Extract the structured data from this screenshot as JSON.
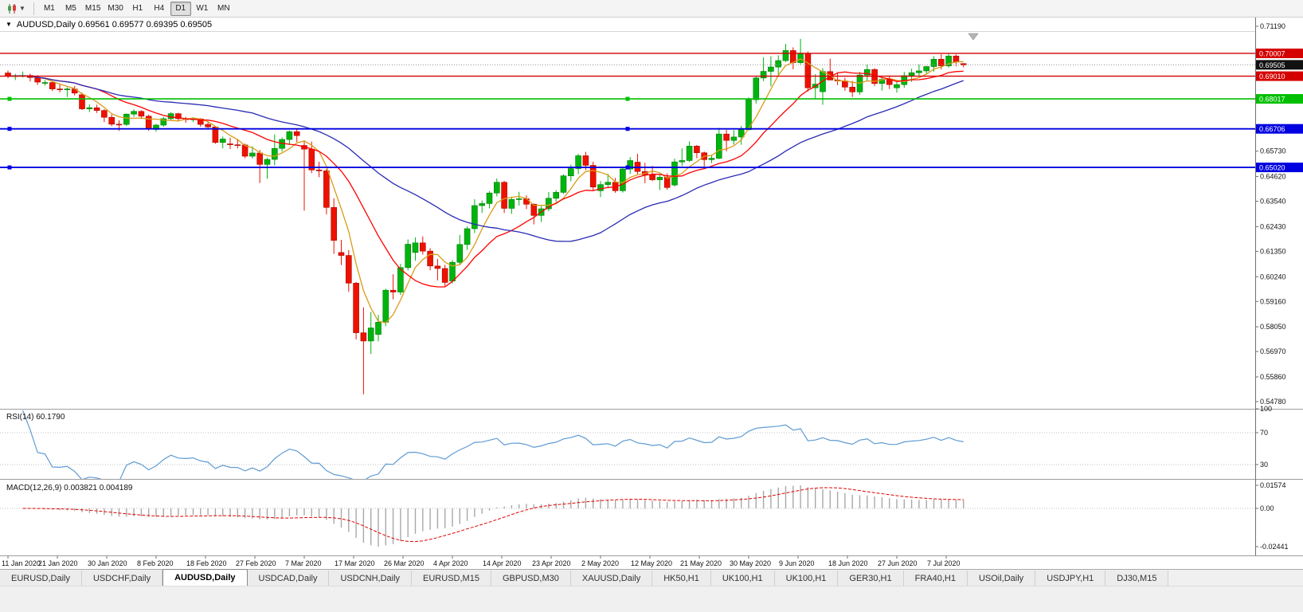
{
  "toolbar": {
    "timeframes": [
      "M1",
      "M5",
      "M15",
      "M30",
      "H1",
      "H4",
      "D1",
      "W1",
      "MN"
    ],
    "active_timeframe": "D1"
  },
  "chart_window": {
    "title_marker": "▼",
    "title": "AUDUSD,Daily 0.69561 0.69577 0.69395 0.69505"
  },
  "chart_data": {
    "type": "candlestick",
    "symbol": "AUDUSD",
    "timeframe": "Daily",
    "ohlc_display": {
      "open": "0.69561",
      "high": "0.69577",
      "low": "0.69395",
      "close": "0.69505"
    },
    "y_range": [
      0.5478,
      0.7119
    ],
    "style": {
      "up_color": "#00b40e",
      "up_border": "#007c09",
      "down_color": "#ee1100",
      "down_border": "#a80b00",
      "background": "#ffffff"
    },
    "x_labels": [
      "11 Jan 2020",
      "21 Jan 2020",
      "30 Jan 2020",
      "8 Feb 2020",
      "18 Feb 2020",
      "27 Feb 2020",
      "7 Mar 2020",
      "17 Mar 2020",
      "26 Mar 2020",
      "4 Apr 2020",
      "14 Apr 2020",
      "23 Apr 2020",
      "2 May 2020",
      "12 May 2020",
      "21 May 2020",
      "30 May 2020",
      "9 Jun 2020",
      "18 Jun 2020",
      "27 Jun 2020",
      "7 Jul 2020"
    ],
    "y_ticks": [
      {
        "label": "0.71190",
        "price": 0.7119
      },
      {
        "label": "0.65730",
        "price": 0.6573
      },
      {
        "label": "0.64620",
        "price": 0.6462
      },
      {
        "label": "0.63540",
        "price": 0.6354
      },
      {
        "label": "0.62430",
        "price": 0.6243
      },
      {
        "label": "0.61350",
        "price": 0.6135
      },
      {
        "label": "0.60240",
        "price": 0.6024
      },
      {
        "label": "0.59160",
        "price": 0.5916
      },
      {
        "label": "0.58050",
        "price": 0.5805
      },
      {
        "label": "0.56970",
        "price": 0.5697
      },
      {
        "label": "0.55860",
        "price": 0.5586
      },
      {
        "label": "0.54780",
        "price": 0.5478
      }
    ],
    "levels": [
      {
        "label": "0.70007",
        "price": 0.70007,
        "color": "#d40000",
        "width": 1.4,
        "kind": "resistance",
        "handles": false
      },
      {
        "label": "0.69505",
        "price": 0.69505,
        "color": "#111111",
        "kind": "current-price"
      },
      {
        "label": "0.69010",
        "price": 0.6901,
        "color": "#d40000",
        "width": 1.4,
        "kind": "resistance",
        "handles": false
      },
      {
        "label": "0.68017",
        "price": 0.68017,
        "color": "#00bf00",
        "width": 1.6,
        "kind": "support",
        "handles": true
      },
      {
        "label": "0.66706",
        "price": 0.66706,
        "color": "#0000e0",
        "width": 1.8,
        "kind": "support",
        "handles": true
      },
      {
        "label": "0.65020",
        "price": 0.6502,
        "color": "#0000e0",
        "width": 1.8,
        "kind": "support",
        "handles": true
      }
    ],
    "moving_averages": [
      {
        "name": "fast-ma",
        "period": 5,
        "color": "#d89c18"
      },
      {
        "name": "medium-ma",
        "period": 13,
        "color": "#ff0000"
      },
      {
        "name": "slow-ma",
        "period": 34,
        "color": "#2a2ab4"
      }
    ],
    "candles": [
      [
        0.6915,
        0.6925,
        0.6892,
        0.6901
      ],
      [
        0.6901,
        0.6911,
        0.6884,
        0.6903
      ],
      [
        0.6903,
        0.6921,
        0.6895,
        0.6904
      ],
      [
        0.6904,
        0.6912,
        0.6878,
        0.6895
      ],
      [
        0.6895,
        0.6905,
        0.6863,
        0.6875
      ],
      [
        0.6872,
        0.6884,
        0.686,
        0.6873
      ],
      [
        0.6873,
        0.688,
        0.6836,
        0.6845
      ],
      [
        0.6845,
        0.6866,
        0.683,
        0.6844
      ],
      [
        0.6844,
        0.6852,
        0.681,
        0.6845
      ],
      [
        0.6845,
        0.6858,
        0.6817,
        0.6827
      ],
      [
        0.682,
        0.6829,
        0.6753,
        0.6758
      ],
      [
        0.6758,
        0.6777,
        0.6744,
        0.6763
      ],
      [
        0.6763,
        0.6776,
        0.674,
        0.6751
      ],
      [
        0.6751,
        0.6757,
        0.67,
        0.6721
      ],
      [
        0.6721,
        0.6733,
        0.6682,
        0.6691
      ],
      [
        0.6691,
        0.6708,
        0.6662,
        0.669
      ],
      [
        0.669,
        0.6738,
        0.6683,
        0.6735
      ],
      [
        0.6735,
        0.6756,
        0.6723,
        0.6747
      ],
      [
        0.6747,
        0.6752,
        0.6714,
        0.6726
      ],
      [
        0.6726,
        0.6733,
        0.6662,
        0.6671
      ],
      [
        0.6668,
        0.6692,
        0.6658,
        0.6687
      ],
      [
        0.6687,
        0.6723,
        0.668,
        0.6715
      ],
      [
        0.6715,
        0.6743,
        0.671,
        0.6737
      ],
      [
        0.6737,
        0.6741,
        0.6704,
        0.6715
      ],
      [
        0.6715,
        0.6723,
        0.6697,
        0.6711
      ],
      [
        0.6711,
        0.6722,
        0.67,
        0.6714
      ],
      [
        0.6714,
        0.6718,
        0.668,
        0.669
      ],
      [
        0.669,
        0.67,
        0.6667,
        0.6679
      ],
      [
        0.6679,
        0.6683,
        0.6605,
        0.6611
      ],
      [
        0.6611,
        0.6637,
        0.6585,
        0.6626
      ],
      [
        0.6605,
        0.6632,
        0.6582,
        0.6601
      ],
      [
        0.6601,
        0.6627,
        0.6585,
        0.66
      ],
      [
        0.66,
        0.6606,
        0.6542,
        0.6551
      ],
      [
        0.6551,
        0.6594,
        0.6541,
        0.6565
      ],
      [
        0.6565,
        0.6578,
        0.6434,
        0.6515
      ],
      [
        0.6515,
        0.6545,
        0.6452,
        0.6537
      ],
      [
        0.6537,
        0.6646,
        0.6511,
        0.6585
      ],
      [
        0.6585,
        0.6633,
        0.6571,
        0.6624
      ],
      [
        0.6624,
        0.6664,
        0.66,
        0.6658
      ],
      [
        0.6658,
        0.6671,
        0.6613,
        0.6641
      ],
      [
        0.6598,
        0.6617,
        0.6313,
        0.6582
      ],
      [
        0.6582,
        0.6615,
        0.6477,
        0.6491
      ],
      [
        0.6491,
        0.6527,
        0.6459,
        0.6487
      ],
      [
        0.6487,
        0.6495,
        0.6297,
        0.6327
      ],
      [
        0.6327,
        0.6367,
        0.6124,
        0.6183
      ],
      [
        0.613,
        0.6185,
        0.6075,
        0.6117
      ],
      [
        0.6117,
        0.6141,
        0.5958,
        0.5996
      ],
      [
        0.5996,
        0.6001,
        0.575,
        0.5779
      ],
      [
        0.5779,
        0.589,
        0.551,
        0.5743
      ],
      [
        0.5743,
        0.587,
        0.5686,
        0.58
      ],
      [
        0.5772,
        0.5857,
        0.5741,
        0.5825
      ],
      [
        0.5825,
        0.5972,
        0.5808,
        0.5965
      ],
      [
        0.5965,
        0.6035,
        0.5925,
        0.5957
      ],
      [
        0.5957,
        0.608,
        0.5944,
        0.6064
      ],
      [
        0.6064,
        0.6187,
        0.6052,
        0.6166
      ],
      [
        0.613,
        0.6196,
        0.6094,
        0.6172
      ],
      [
        0.6172,
        0.62,
        0.6121,
        0.6136
      ],
      [
        0.6136,
        0.6149,
        0.6052,
        0.6071
      ],
      [
        0.6071,
        0.6102,
        0.6008,
        0.606
      ],
      [
        0.606,
        0.6076,
        0.5982,
        0.5999
      ],
      [
        0.6005,
        0.6097,
        0.5995,
        0.6087
      ],
      [
        0.6087,
        0.6207,
        0.6077,
        0.6165
      ],
      [
        0.6165,
        0.6244,
        0.6141,
        0.6234
      ],
      [
        0.6234,
        0.6363,
        0.6215,
        0.6335
      ],
      [
        0.6335,
        0.6357,
        0.6303,
        0.6344
      ],
      [
        0.6344,
        0.6398,
        0.6323,
        0.639
      ],
      [
        0.639,
        0.6454,
        0.6375,
        0.6437
      ],
      [
        0.6437,
        0.6443,
        0.6303,
        0.6323
      ],
      [
        0.6323,
        0.6374,
        0.6299,
        0.6362
      ],
      [
        0.6362,
        0.6395,
        0.6335,
        0.6365
      ],
      [
        0.6365,
        0.638,
        0.632,
        0.6341
      ],
      [
        0.6341,
        0.6345,
        0.6253,
        0.6292
      ],
      [
        0.6292,
        0.6333,
        0.6263,
        0.6321
      ],
      [
        0.6321,
        0.6394,
        0.6311,
        0.6367
      ],
      [
        0.6367,
        0.6403,
        0.6352,
        0.6393
      ],
      [
        0.6393,
        0.6472,
        0.6386,
        0.6465
      ],
      [
        0.6465,
        0.6514,
        0.6441,
        0.6497
      ],
      [
        0.6497,
        0.6561,
        0.6473,
        0.6553
      ],
      [
        0.6553,
        0.657,
        0.649,
        0.6511
      ],
      [
        0.6511,
        0.6527,
        0.6402,
        0.6416
      ],
      [
        0.64,
        0.6442,
        0.6372,
        0.6427
      ],
      [
        0.6427,
        0.6474,
        0.6413,
        0.6437
      ],
      [
        0.6437,
        0.6456,
        0.6391,
        0.64
      ],
      [
        0.64,
        0.6503,
        0.6392,
        0.6495
      ],
      [
        0.6495,
        0.6547,
        0.6473,
        0.6532
      ],
      [
        0.6525,
        0.6561,
        0.6473,
        0.6484
      ],
      [
        0.6484,
        0.6522,
        0.6433,
        0.647
      ],
      [
        0.647,
        0.6509,
        0.6442,
        0.6448
      ],
      [
        0.6448,
        0.647,
        0.6403,
        0.6459
      ],
      [
        0.6459,
        0.6476,
        0.6404,
        0.6414
      ],
      [
        0.6425,
        0.654,
        0.6418,
        0.6526
      ],
      [
        0.6526,
        0.6585,
        0.6508,
        0.6532
      ],
      [
        0.6532,
        0.6616,
        0.6525,
        0.6595
      ],
      [
        0.6595,
        0.66,
        0.6542,
        0.6566
      ],
      [
        0.6566,
        0.6571,
        0.6506,
        0.6536
      ],
      [
        0.6536,
        0.6557,
        0.6521,
        0.6542
      ],
      [
        0.6542,
        0.6675,
        0.6538,
        0.6648
      ],
      [
        0.6648,
        0.6666,
        0.6572,
        0.662
      ],
      [
        0.662,
        0.6665,
        0.6602,
        0.6635
      ],
      [
        0.6635,
        0.6684,
        0.6601,
        0.6667
      ],
      [
        0.6667,
        0.6808,
        0.6663,
        0.6798
      ],
      [
        0.6798,
        0.6899,
        0.6781,
        0.6893
      ],
      [
        0.6893,
        0.6983,
        0.6879,
        0.6922
      ],
      [
        0.6922,
        0.6988,
        0.6857,
        0.6941
      ],
      [
        0.6941,
        0.6992,
        0.6903,
        0.6969
      ],
      [
        0.6969,
        0.7042,
        0.6963,
        0.7013
      ],
      [
        0.7013,
        0.7027,
        0.6931,
        0.696
      ],
      [
        0.696,
        0.7064,
        0.6953,
        0.7
      ],
      [
        0.7,
        0.7009,
        0.6834,
        0.685
      ],
      [
        0.685,
        0.691,
        0.6801,
        0.6866
      ],
      [
        0.6833,
        0.6936,
        0.6776,
        0.6921
      ],
      [
        0.6921,
        0.6977,
        0.6884,
        0.6884
      ],
      [
        0.6884,
        0.6918,
        0.6862,
        0.688
      ],
      [
        0.688,
        0.6894,
        0.6837,
        0.6853
      ],
      [
        0.6853,
        0.688,
        0.681,
        0.6832
      ],
      [
        0.6832,
        0.692,
        0.682,
        0.6906
      ],
      [
        0.6906,
        0.6952,
        0.688,
        0.693
      ],
      [
        0.693,
        0.6936,
        0.6858,
        0.6869
      ],
      [
        0.6869,
        0.6896,
        0.6838,
        0.6887
      ],
      [
        0.6887,
        0.6901,
        0.6845,
        0.6864
      ],
      [
        0.685,
        0.6878,
        0.6829,
        0.6864
      ],
      [
        0.6864,
        0.692,
        0.685,
        0.6903
      ],
      [
        0.6903,
        0.6934,
        0.6876,
        0.6916
      ],
      [
        0.6916,
        0.6952,
        0.69,
        0.6924
      ],
      [
        0.6924,
        0.6946,
        0.6911,
        0.6943
      ],
      [
        0.6943,
        0.6988,
        0.6921,
        0.6975
      ],
      [
        0.6975,
        0.6997,
        0.6931,
        0.6946
      ],
      [
        0.6946,
        0.6999,
        0.6938,
        0.6989
      ],
      [
        0.6989,
        0.6996,
        0.6944,
        0.6963
      ],
      [
        0.6956,
        0.6958,
        0.694,
        0.695
      ]
    ],
    "indicators": {
      "rsi": {
        "name": "RSI",
        "period": 14,
        "label": "RSI(14) 60.1790",
        "value": "60.1790",
        "line_color": "#5e9bd3",
        "scale": [
          {
            "label": "100",
            "value": 100
          },
          {
            "label": "70",
            "value": 70
          },
          {
            "label": "30",
            "value": 30
          }
        ],
        "guide_levels": [
          70,
          30
        ]
      },
      "macd": {
        "name": "MACD",
        "fast": 12,
        "slow": 26,
        "signal": 9,
        "label": "MACD(12,26,9) 0.003821 0.004189",
        "values": [
          "0.003821",
          "0.004189"
        ],
        "histogram_color": "#a8a8a8",
        "signal_color": "#e00000",
        "scale": [
          {
            "label": "0.01574"
          },
          {
            "label": "0.00"
          },
          {
            "label": "-0.02441"
          }
        ]
      }
    }
  },
  "tabs": {
    "active_index": 2,
    "items": [
      "EURUSD,Daily",
      "USDCHF,Daily",
      "AUDUSD,Daily",
      "USDCAD,Daily",
      "USDCNH,Daily",
      "EURUSD,M15",
      "GBPUSD,M30",
      "XAUUSD,Daily",
      "HK50,H1",
      "UK100,H1",
      "UK100,H1",
      "GER30,H1",
      "FRA40,H1",
      "USOil,Daily",
      "USDJPY,H1",
      "DJ30,M15"
    ]
  }
}
